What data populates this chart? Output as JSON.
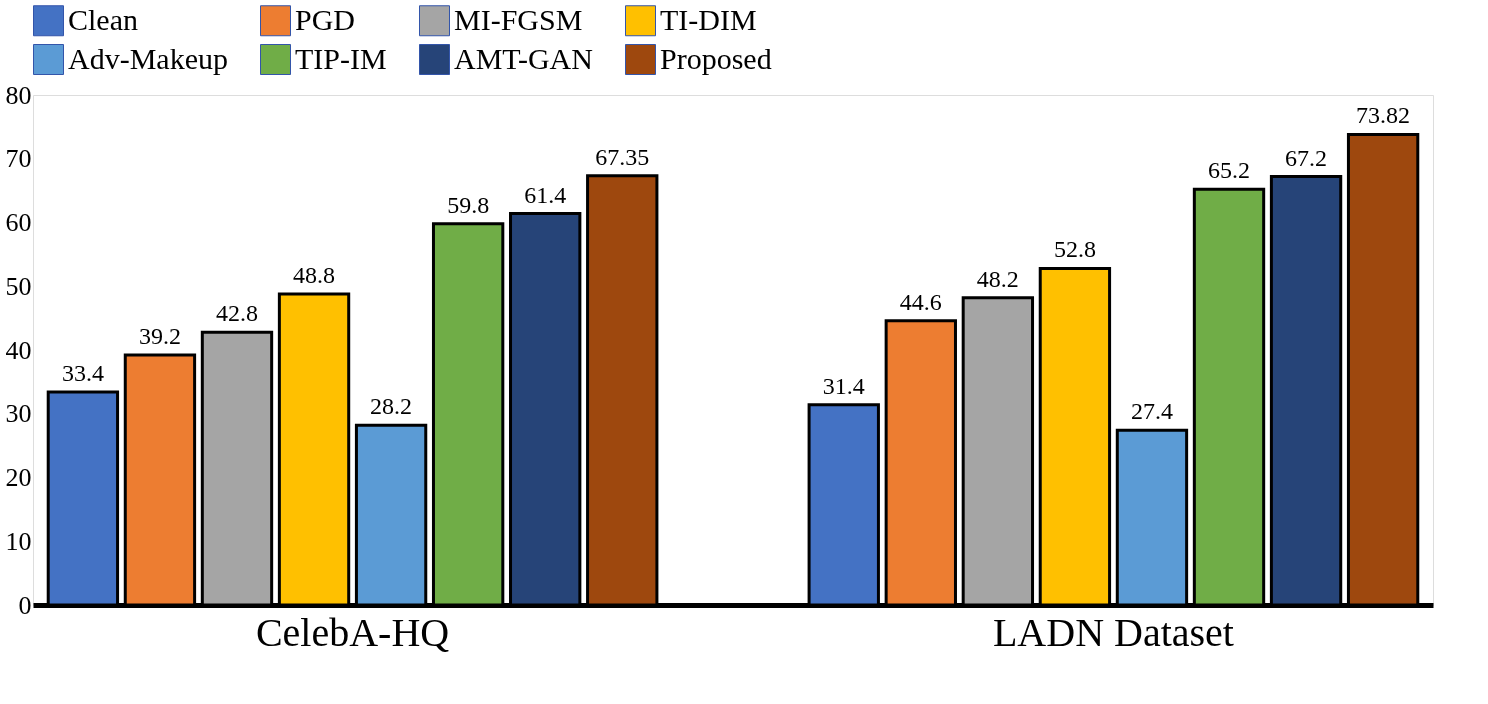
{
  "chart_data": {
    "type": "bar",
    "categories": [
      "CelebA-HQ",
      "LADN Dataset"
    ],
    "series": [
      {
        "name": "Clean",
        "color": "#4472c4",
        "values": [
          33.4,
          31.4
        ]
      },
      {
        "name": "PGD",
        "color": "#ed7d31",
        "values": [
          39.2,
          44.6
        ]
      },
      {
        "name": "MI-FGSM",
        "color": "#a5a5a5",
        "values": [
          42.8,
          48.2
        ]
      },
      {
        "name": "TI-DIM",
        "color": "#ffc000",
        "values": [
          48.8,
          52.8
        ]
      },
      {
        "name": "Adv-Makeup",
        "color": "#5b9bd5",
        "values": [
          28.2,
          27.4
        ]
      },
      {
        "name": "TIP-IM",
        "color": "#70ad47",
        "values": [
          59.8,
          65.2
        ]
      },
      {
        "name": "AMT-GAN",
        "color": "#264478",
        "values": [
          61.4,
          67.2
        ]
      },
      {
        "name": "Proposed",
        "color": "#9e480e",
        "values": [
          67.35,
          73.82
        ]
      }
    ],
    "ylim": [
      0,
      80
    ],
    "yticks": [
      0,
      10,
      20,
      30,
      40,
      50,
      60,
      70,
      80
    ],
    "grid": false,
    "legend": "top",
    "data_labels": true
  }
}
